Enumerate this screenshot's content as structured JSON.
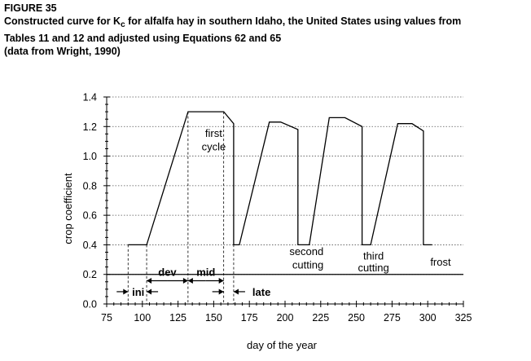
{
  "figure": {
    "number": "FIGURE 35",
    "caption_pre": "Constructed curve for K",
    "caption_sub": "c",
    "caption_post": " for alfalfa hay in southern Idaho, the United States using values from",
    "caption_line2": "Tables 11 and 12 and adjusted using Equations 62 and 65",
    "caption_line3": "(data from Wright, 1990)"
  },
  "chart_data": {
    "type": "line",
    "xlabel": "day of the year",
    "ylabel": "crop  coefficient",
    "xlim": [
      75,
      325
    ],
    "ylim": [
      0,
      1.4
    ],
    "x_ticks": [
      75,
      100,
      125,
      150,
      175,
      200,
      225,
      250,
      275,
      300,
      325
    ],
    "y_ticks": [
      "0.0",
      "0.2",
      "0.4",
      "0.6",
      "0.8",
      "1.0",
      "1.2",
      "1.4"
    ],
    "grid": "horizontal-dotted",
    "series": [
      {
        "x": [
          90,
          103,
          132,
          157,
          164,
          164,
          168,
          189,
          197,
          209,
          209,
          217,
          231,
          242,
          254,
          254,
          260,
          279,
          289,
          297,
          297,
          303
        ],
        "y": [
          0.4,
          0.4,
          1.3,
          1.3,
          1.22,
          0.4,
          0.4,
          1.23,
          1.23,
          1.18,
          0.4,
          0.4,
          1.26,
          1.26,
          1.2,
          0.4,
          0.4,
          1.22,
          1.22,
          1.17,
          0.4,
          0.4
        ]
      }
    ],
    "reference_line_y": 0.2,
    "stage_boundaries_x": [
      90,
      103,
      132,
      157,
      164
    ],
    "stages": [
      {
        "label": "ini"
      },
      {
        "label": "dev"
      },
      {
        "label": "mid"
      },
      {
        "label": "late"
      }
    ],
    "annotations": [
      {
        "text": "first",
        "x": 150,
        "y": 1.13
      },
      {
        "text": "cycle",
        "x": 150,
        "y": 1.04
      },
      {
        "text": "second",
        "x": 215,
        "y": 0.33
      },
      {
        "text": "cutting",
        "x": 216,
        "y": 0.24
      },
      {
        "text": "third",
        "x": 262,
        "y": 0.3
      },
      {
        "text": "cutting",
        "x": 262,
        "y": 0.22
      },
      {
        "text": "frost",
        "x": 309,
        "y": 0.26
      }
    ]
  }
}
